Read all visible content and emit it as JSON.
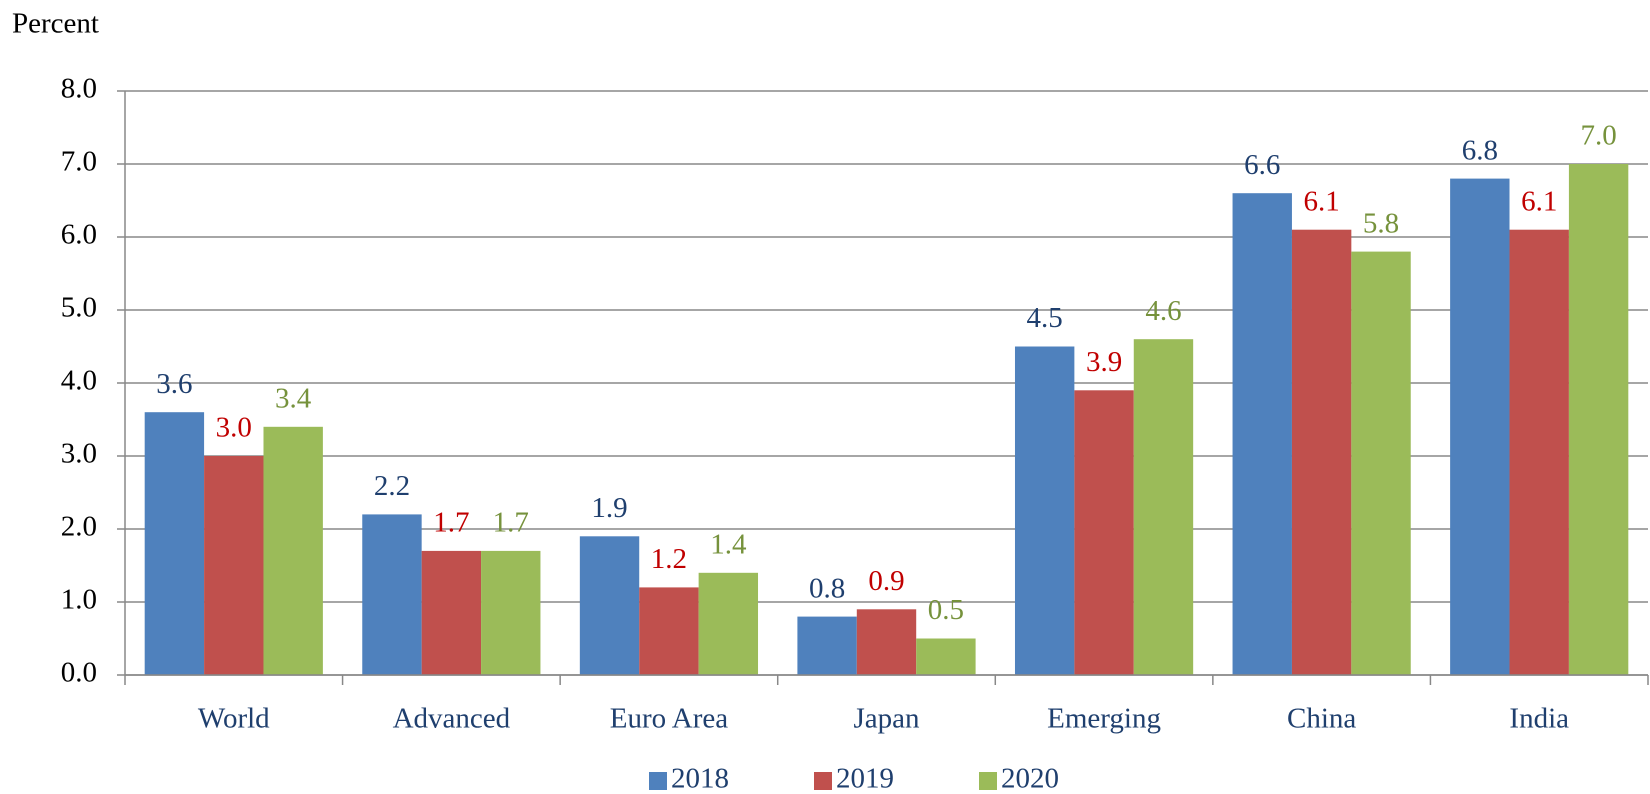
{
  "chart_data": {
    "type": "bar",
    "y_axis_label": "Percent",
    "categories": [
      "World",
      "Advanced",
      "Euro Area",
      "Japan",
      "Emerging",
      "China",
      "India"
    ],
    "series": [
      {
        "name": "2018",
        "color": "#4f81bd",
        "label_color": "#1f3f6e",
        "values": [
          3.6,
          2.2,
          1.9,
          0.8,
          4.5,
          6.6,
          6.8
        ],
        "value_labels": [
          "3.6",
          "2.2",
          "1.9",
          "0.8",
          "4.5",
          "6.6",
          "6.8"
        ]
      },
      {
        "name": "2019",
        "color": "#c0504d",
        "label_color": "#c00000",
        "values": [
          3.0,
          1.7,
          1.2,
          0.9,
          3.9,
          6.1,
          6.1
        ],
        "value_labels": [
          "3.0",
          "1.7",
          "1.2",
          "0.9",
          "3.9",
          "6.1",
          "6.1"
        ]
      },
      {
        "name": "2020",
        "color": "#9bbb59",
        "label_color": "#76923c",
        "values": [
          3.4,
          1.7,
          1.4,
          0.5,
          4.6,
          5.8,
          7.0
        ],
        "value_labels": [
          "3.4",
          "1.7",
          "1.4",
          "0.5",
          "4.6",
          "5.8",
          "7.0"
        ]
      }
    ],
    "ylim": [
      0,
      8
    ],
    "yticks": [
      {
        "value": 0,
        "label": "0.0"
      },
      {
        "value": 1,
        "label": "1.0"
      },
      {
        "value": 2,
        "label": "2.0"
      },
      {
        "value": 3,
        "label": "3.0"
      },
      {
        "value": 4,
        "label": "4.0"
      },
      {
        "value": 5,
        "label": "5.0"
      },
      {
        "value": 6,
        "label": "6.0"
      },
      {
        "value": 7,
        "label": "7.0"
      },
      {
        "value": 8,
        "label": "8.0"
      }
    ],
    "grid": true,
    "legend": "bottom"
  }
}
